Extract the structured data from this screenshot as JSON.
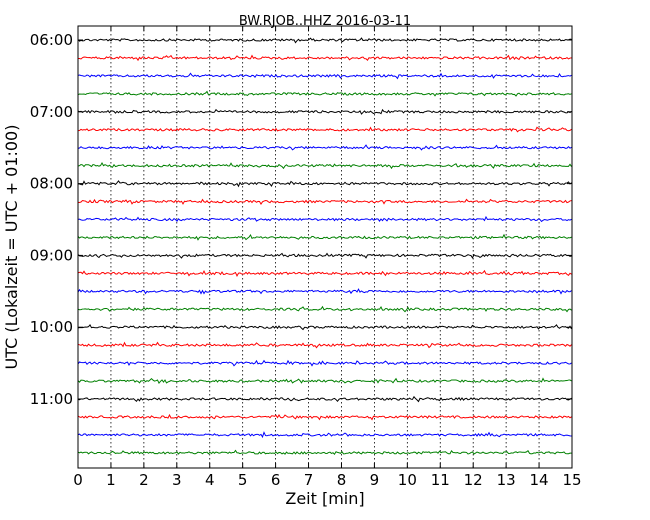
{
  "chart_data": {
    "type": "line",
    "title": "BW.RJOB..HHZ 2016-03-11",
    "xlabel": "Zeit  [min]",
    "ylabel": "UTC (Lokalzeit = UTC + 01:00)",
    "xlim": [
      0,
      15
    ],
    "x_ticks": [
      "0",
      "1",
      "2",
      "3",
      "4",
      "5",
      "6",
      "7",
      "8",
      "9",
      "10",
      "11",
      "12",
      "13",
      "14",
      "15"
    ],
    "y_ticks": [
      "06:00",
      "07:00",
      "08:00",
      "09:00",
      "10:00",
      "11:00"
    ],
    "grid": true,
    "colors": [
      "#000000",
      "#ff0000",
      "#0000ff",
      "#008000"
    ],
    "traces": [
      {
        "start": "06:00",
        "color": "#000000"
      },
      {
        "start": "06:15",
        "color": "#ff0000"
      },
      {
        "start": "06:30",
        "color": "#0000ff"
      },
      {
        "start": "06:45",
        "color": "#008000"
      },
      {
        "start": "07:00",
        "color": "#000000"
      },
      {
        "start": "07:15",
        "color": "#ff0000"
      },
      {
        "start": "07:30",
        "color": "#0000ff"
      },
      {
        "start": "07:45",
        "color": "#008000"
      },
      {
        "start": "08:00",
        "color": "#000000"
      },
      {
        "start": "08:15",
        "color": "#ff0000"
      },
      {
        "start": "08:30",
        "color": "#0000ff"
      },
      {
        "start": "08:45",
        "color": "#008000"
      },
      {
        "start": "09:00",
        "color": "#000000"
      },
      {
        "start": "09:15",
        "color": "#ff0000"
      },
      {
        "start": "09:30",
        "color": "#0000ff"
      },
      {
        "start": "09:45",
        "color": "#008000"
      },
      {
        "start": "10:00",
        "color": "#000000"
      },
      {
        "start": "10:15",
        "color": "#ff0000"
      },
      {
        "start": "10:30",
        "color": "#0000ff"
      },
      {
        "start": "10:45",
        "color": "#008000"
      },
      {
        "start": "11:00",
        "color": "#000000"
      },
      {
        "start": "11:15",
        "color": "#ff0000"
      },
      {
        "start": "11:30",
        "color": "#0000ff"
      },
      {
        "start": "11:45",
        "color": "#008000"
      }
    ]
  }
}
